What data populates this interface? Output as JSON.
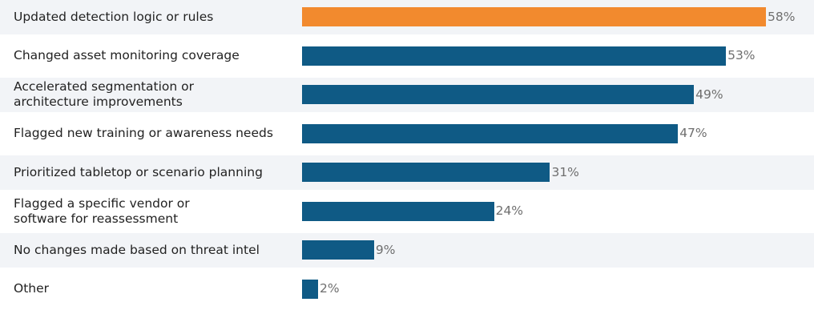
{
  "chart_data": {
    "type": "bar",
    "orientation": "horizontal",
    "categories": [
      "Updated detection logic or rules",
      "Changed asset monitoring coverage",
      "Accelerated segmentation or\narchitecture improvements",
      "Flagged new training or awareness needs",
      "Prioritized tabletop or scenario planning",
      "Flagged a specific vendor or\nsoftware for reassessment",
      "No changes made based on threat intel",
      "Other"
    ],
    "values": [
      58,
      53,
      49,
      47,
      31,
      24,
      9,
      2
    ],
    "value_labels": [
      "58%",
      "53%",
      "49%",
      "47%",
      "31%",
      "24%",
      "9%",
      "2%"
    ],
    "unit": "%",
    "xlim": [
      0,
      58
    ],
    "highlight_index": 0,
    "grid": false,
    "legend": "none"
  },
  "colors": {
    "highlight": "#f28a2e",
    "bar": "#0f5a85",
    "row_band": "#f2f4f7",
    "label": "#222222",
    "value_label": "#6f6f6f"
  }
}
